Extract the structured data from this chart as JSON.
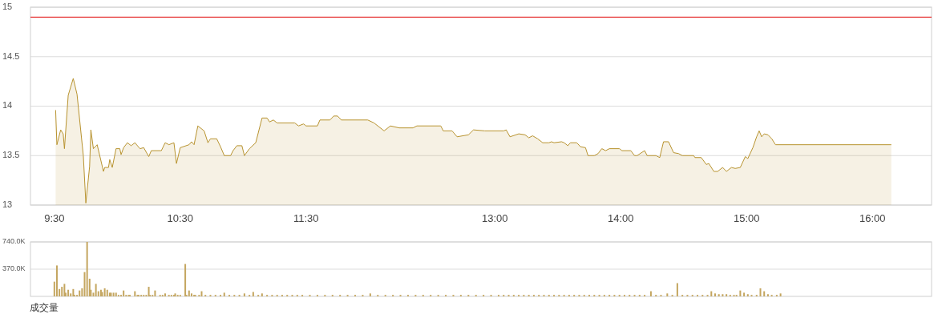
{
  "chart_data": [
    {
      "type": "area",
      "xlim": [
        9.31,
        16.47
      ],
      "ylim": [
        13,
        15
      ],
      "xticks": [
        {
          "value": 9.5,
          "label": "9:30"
        },
        {
          "value": 10.5,
          "label": "10:30"
        },
        {
          "value": 11.5,
          "label": "11:30"
        },
        {
          "value": 13,
          "label": "13:00"
        },
        {
          "value": 14,
          "label": "14:00"
        },
        {
          "value": 15,
          "label": "15:00"
        },
        {
          "value": 16,
          "label": "16:00"
        }
      ],
      "yticks": [
        13,
        13.5,
        14,
        14.5,
        15
      ],
      "grid": "y",
      "ref_lines": [
        {
          "axis": "y",
          "value": 14.9,
          "color": "#e00000"
        }
      ],
      "series": [
        {
          "color": "#b8932f",
          "x": [
            9.51,
            9.52,
            9.55,
            9.57,
            9.58,
            9.61,
            9.65,
            9.68,
            9.73,
            9.75,
            9.78,
            9.79,
            9.81,
            9.84,
            9.89,
            9.9,
            9.93,
            9.94,
            9.96,
            9.99,
            10.02,
            10.03,
            10.05,
            10.08,
            10.11,
            10.14,
            10.18,
            10.21,
            10.25,
            10.27,
            10.35,
            10.38,
            10.41,
            10.45,
            10.47,
            10.5,
            10.57,
            10.59,
            10.61,
            10.64,
            10.69,
            10.72,
            10.74,
            10.79,
            10.82,
            10.85,
            10.9,
            10.92,
            10.95,
            10.99,
            11.01,
            11.05,
            11.1,
            11.15,
            11.19,
            11.21,
            11.24,
            11.27,
            11.41,
            11.44,
            11.48,
            11.5,
            11.59,
            11.61,
            11.69,
            11.72,
            11.75,
            11.78,
            11.99,
            12.04,
            12.12,
            12.17,
            12.24,
            12.35,
            12.38,
            12.57,
            12.59,
            12.66,
            12.7,
            12.79,
            12.83,
            12.92,
            13.07,
            13.09,
            13.12,
            13.19,
            13.24,
            13.27,
            13.3,
            13.34,
            13.38,
            13.43,
            13.45,
            13.47,
            13.53,
            13.55,
            13.58,
            13.6,
            13.65,
            13.68,
            13.72,
            13.74,
            13.79,
            13.82,
            13.85,
            13.88,
            13.91,
            13.99,
            14.01,
            14.08,
            14.11,
            14.13,
            14.19,
            14.21,
            14.28,
            14.31,
            14.34,
            14.38,
            14.42,
            14.46,
            14.49,
            14.58,
            14.59,
            14.64,
            14.68,
            14.7,
            14.74,
            14.77,
            14.81,
            14.84,
            14.88,
            14.91,
            14.95,
            14.99,
            15.01,
            15.05,
            15.08,
            15.1,
            15.12,
            15.14,
            15.17,
            15.2,
            15.23,
            16.15
          ],
          "values": [
            13.96,
            13.61,
            13.76,
            13.72,
            13.57,
            14.11,
            14.28,
            14.12,
            13.5,
            13.02,
            13.39,
            13.76,
            13.57,
            13.61,
            13.34,
            13.38,
            13.38,
            13.46,
            13.38,
            13.57,
            13.57,
            13.51,
            13.58,
            13.63,
            13.6,
            13.63,
            13.57,
            13.58,
            13.49,
            13.55,
            13.55,
            13.63,
            13.61,
            13.63,
            13.42,
            13.58,
            13.61,
            13.64,
            13.61,
            13.8,
            13.75,
            13.63,
            13.67,
            13.67,
            13.59,
            13.5,
            13.5,
            13.55,
            13.6,
            13.6,
            13.5,
            13.57,
            13.63,
            13.88,
            13.88,
            13.84,
            13.86,
            13.83,
            13.83,
            13.8,
            13.82,
            13.8,
            13.8,
            13.86,
            13.86,
            13.9,
            13.9,
            13.86,
            13.86,
            13.83,
            13.75,
            13.8,
            13.78,
            13.78,
            13.8,
            13.8,
            13.75,
            13.75,
            13.69,
            13.71,
            13.76,
            13.75,
            13.75,
            13.76,
            13.69,
            13.72,
            13.71,
            13.68,
            13.7,
            13.67,
            13.63,
            13.63,
            13.64,
            13.63,
            13.64,
            13.63,
            13.6,
            13.63,
            13.63,
            13.59,
            13.58,
            13.5,
            13.5,
            13.52,
            13.57,
            13.55,
            13.57,
            13.57,
            13.55,
            13.55,
            13.5,
            13.5,
            13.55,
            13.5,
            13.5,
            13.48,
            13.64,
            13.64,
            13.53,
            13.52,
            13.5,
            13.5,
            13.48,
            13.48,
            13.41,
            13.42,
            13.34,
            13.34,
            13.38,
            13.34,
            13.38,
            13.37,
            13.38,
            13.49,
            13.47,
            13.58,
            13.69,
            13.75,
            13.69,
            13.72,
            13.71,
            13.67,
            13.61,
            13.61
          ]
        }
      ]
    },
    {
      "type": "bar",
      "xlim": [
        9.31,
        16.47
      ],
      "ylim": [
        0,
        740000
      ],
      "yticks": [
        {
          "value": 370000,
          "label": "370.0K"
        },
        {
          "value": 740000,
          "label": "740.0K"
        }
      ],
      "grid": "y",
      "tick_labels": "y",
      "annotations": [
        "成交量"
      ],
      "series": [
        {
          "color": "#c4a660",
          "x": [
            9.5,
            9.52,
            9.54,
            9.56,
            9.58,
            9.59,
            9.61,
            9.63,
            9.65,
            9.66,
            9.68,
            9.7,
            9.72,
            9.74,
            9.76,
            9.78,
            9.79,
            9.81,
            9.83,
            9.85,
            9.87,
            9.88,
            9.9,
            9.92,
            9.94,
            9.95,
            9.97,
            9.99,
            10.01,
            10.03,
            10.05,
            10.07,
            10.09,
            10.1,
            10.14,
            10.16,
            10.17,
            10.19,
            10.21,
            10.23,
            10.25,
            10.26,
            10.28,
            10.3,
            10.34,
            10.36,
            10.38,
            10.41,
            10.43,
            10.45,
            10.46,
            10.48,
            10.5,
            10.54,
            10.55,
            10.57,
            10.59,
            10.61,
            10.62,
            10.65,
            10.67,
            10.7,
            10.74,
            10.78,
            10.82,
            10.85,
            10.89,
            10.93,
            10.97,
            11.01,
            11.05,
            11.08,
            11.12,
            11.15,
            11.19,
            11.23,
            11.27,
            11.31,
            11.35,
            11.39,
            11.43,
            11.47,
            11.53,
            11.59,
            11.65,
            11.71,
            11.77,
            11.83,
            11.89,
            11.95,
            12.01,
            12.07,
            12.13,
            12.19,
            12.25,
            12.31,
            12.37,
            12.43,
            12.49,
            12.55,
            12.61,
            12.67,
            12.73,
            12.79,
            12.85,
            12.91,
            12.97,
            13.03,
            13.07,
            13.11,
            13.15,
            13.19,
            13.23,
            13.27,
            13.31,
            13.35,
            13.39,
            13.43,
            13.47,
            13.51,
            13.55,
            13.59,
            13.63,
            13.67,
            13.71,
            13.75,
            13.79,
            13.83,
            13.87,
            13.91,
            13.95,
            13.99,
            14.03,
            14.07,
            14.11,
            14.15,
            14.19,
            14.24,
            14.28,
            14.32,
            14.37,
            14.41,
            14.45,
            14.49,
            14.53,
            14.57,
            14.61,
            14.65,
            14.69,
            14.72,
            14.75,
            14.78,
            14.81,
            14.84,
            14.87,
            14.9,
            14.92,
            14.95,
            14.98,
            15.01,
            15.04,
            15.08,
            15.11,
            15.14,
            15.17,
            15.2,
            15.24,
            15.27
          ],
          "values": [
            200000,
            420000,
            100000,
            130000,
            170000,
            50000,
            90000,
            40000,
            100000,
            20000,
            20000,
            80000,
            110000,
            330000,
            740000,
            240000,
            90000,
            50000,
            170000,
            70000,
            90000,
            60000,
            110000,
            90000,
            50000,
            50000,
            50000,
            50000,
            20000,
            20000,
            80000,
            20000,
            20000,
            20000,
            70000,
            20000,
            20000,
            20000,
            20000,
            20000,
            130000,
            20000,
            20000,
            80000,
            20000,
            20000,
            40000,
            20000,
            20000,
            20000,
            40000,
            20000,
            20000,
            440000,
            20000,
            80000,
            40000,
            20000,
            20000,
            20000,
            70000,
            20000,
            20000,
            20000,
            20000,
            50000,
            20000,
            20000,
            20000,
            40000,
            20000,
            60000,
            20000,
            40000,
            20000,
            20000,
            20000,
            20000,
            20000,
            20000,
            20000,
            20000,
            20000,
            20000,
            20000,
            20000,
            20000,
            20000,
            20000,
            20000,
            40000,
            20000,
            20000,
            20000,
            20000,
            20000,
            20000,
            20000,
            20000,
            20000,
            20000,
            20000,
            20000,
            20000,
            20000,
            20000,
            20000,
            20000,
            20000,
            20000,
            20000,
            20000,
            20000,
            20000,
            20000,
            20000,
            20000,
            20000,
            20000,
            20000,
            20000,
            20000,
            20000,
            20000,
            20000,
            20000,
            20000,
            20000,
            20000,
            20000,
            20000,
            20000,
            20000,
            20000,
            20000,
            20000,
            20000,
            70000,
            20000,
            20000,
            40000,
            20000,
            180000,
            20000,
            20000,
            20000,
            20000,
            20000,
            20000,
            70000,
            40000,
            30000,
            30000,
            30000,
            20000,
            20000,
            20000,
            80000,
            50000,
            30000,
            20000,
            20000,
            110000,
            70000,
            30000,
            20000,
            20000,
            40000
          ]
        }
      ]
    }
  ]
}
